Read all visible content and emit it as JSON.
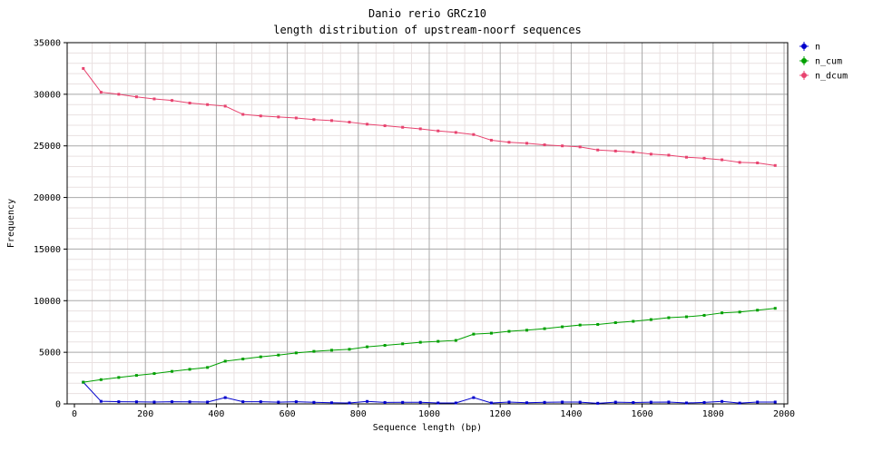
{
  "chart_data": {
    "type": "line",
    "title": "Danio rerio GRCz10",
    "subtitle": "length distribution of upstream-noorf sequences",
    "xlabel": "Sequence length (bp)",
    "ylabel": "Frequency",
    "xlim": [
      0,
      2000
    ],
    "ylim": [
      0,
      35000
    ],
    "x_ticks": [
      0,
      200,
      400,
      600,
      800,
      1000,
      1200,
      1400,
      1600,
      1800,
      2000
    ],
    "y_ticks": [
      0,
      5000,
      10000,
      15000,
      20000,
      25000,
      30000,
      35000
    ],
    "x_minor_step": 50,
    "y_minor_step": 1000,
    "grid": true,
    "legend_position": "top-right-outside",
    "colors": {
      "major_grid": "#a8a8a8",
      "minor_grid": "#e9e1e1",
      "axis": "#000000"
    },
    "x": [
      25,
      75,
      125,
      175,
      225,
      275,
      325,
      375,
      425,
      475,
      525,
      575,
      625,
      675,
      725,
      775,
      825,
      875,
      925,
      975,
      1025,
      1075,
      1125,
      1175,
      1225,
      1275,
      1325,
      1375,
      1425,
      1475,
      1525,
      1575,
      1625,
      1675,
      1725,
      1775,
      1825,
      1875,
      1925,
      1975
    ],
    "series": [
      {
        "name": "n",
        "color": "#0000cc",
        "values": [
          2100,
          250,
          210,
          200,
          180,
          210,
          200,
          180,
          610,
          210,
          210,
          170,
          210,
          150,
          110,
          90,
          240,
          140,
          150,
          150,
          90,
          90,
          610,
          90,
          180,
          110,
          150,
          180,
          170,
          60,
          170,
          130,
          170,
          180,
          90,
          140,
          240,
          80,
          180,
          180
        ]
      },
      {
        "name": "n_cum",
        "color": "#00a000",
        "values": [
          2100,
          2350,
          2560,
          2760,
          2940,
          3150,
          3350,
          3530,
          4140,
          4350,
          4560,
          4730,
          4940,
          5090,
          5200,
          5290,
          5530,
          5670,
          5820,
          5970,
          6060,
          6150,
          6760,
          6850,
          7030,
          7140,
          7290,
          7470,
          7640,
          7700,
          7870,
          8000,
          8170,
          8350,
          8440,
          8580,
          8820,
          8900,
          9080,
          9260
        ]
      },
      {
        "name": "n_dcum",
        "color": "#e8436f",
        "values": [
          32500,
          30200,
          30000,
          29750,
          29550,
          29400,
          29150,
          29000,
          28850,
          28050,
          27900,
          27800,
          27700,
          27550,
          27450,
          27300,
          27100,
          26950,
          26800,
          26650,
          26450,
          26300,
          26100,
          25550,
          25350,
          25250,
          25100,
          25000,
          24900,
          24600,
          24500,
          24400,
          24200,
          24100,
          23900,
          23800,
          23650,
          23400,
          23350,
          23100
        ]
      }
    ]
  }
}
